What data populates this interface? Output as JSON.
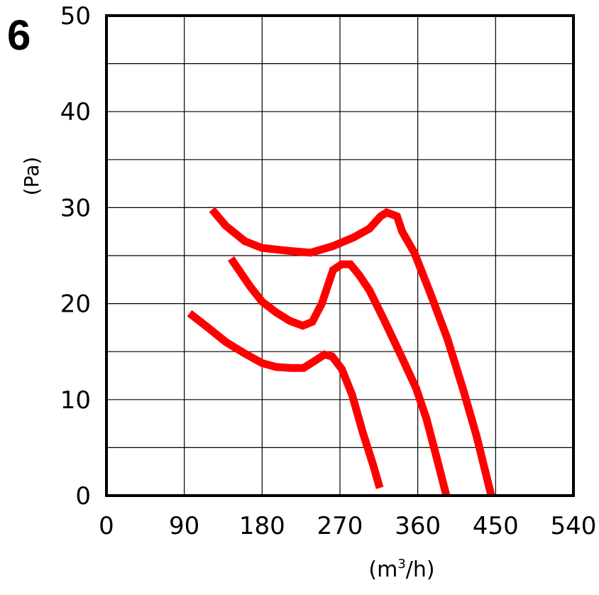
{
  "chart_data": {
    "type": "line",
    "title": "6",
    "xlabel": "(m³/h)",
    "ylabel": "(Pa)",
    "xlim": [
      0,
      540
    ],
    "ylim": [
      0,
      50
    ],
    "x_ticks": [
      "0",
      "90",
      "180",
      "270",
      "360",
      "450",
      "540"
    ],
    "y_ticks": [
      "0",
      "10",
      "20",
      "30",
      "40",
      "50"
    ],
    "grid": true,
    "line_color": "#ff0000",
    "series": [
      {
        "points": [
          [
            122,
            29.8
          ],
          [
            138,
            28.1
          ],
          [
            160,
            26.5
          ],
          [
            180,
            25.8
          ],
          [
            210,
            25.5
          ],
          [
            236,
            25.3
          ],
          [
            262,
            26.0
          ],
          [
            286,
            26.9
          ],
          [
            304,
            27.8
          ],
          [
            317,
            29.1
          ],
          [
            324,
            29.5
          ],
          [
            336,
            29.1
          ],
          [
            342,
            27.5
          ],
          [
            356,
            25.3
          ],
          [
            374,
            21.2
          ],
          [
            394,
            16.4
          ],
          [
            412,
            11.2
          ],
          [
            428,
            6.2
          ],
          [
            445,
            0
          ]
        ]
      },
      {
        "points": [
          [
            144,
            24.7
          ],
          [
            166,
            21.8
          ],
          [
            180,
            20.2
          ],
          [
            196,
            19.1
          ],
          [
            212,
            18.2
          ],
          [
            227,
            17.7
          ],
          [
            238,
            18.1
          ],
          [
            249,
            20.0
          ],
          [
            262,
            23.5
          ],
          [
            272,
            24.1
          ],
          [
            282,
            24.1
          ],
          [
            292,
            23.0
          ],
          [
            304,
            21.4
          ],
          [
            320,
            18.5
          ],
          [
            340,
            14.7
          ],
          [
            358,
            11.2
          ],
          [
            370,
            8.0
          ],
          [
            384,
            3.2
          ],
          [
            393,
            0
          ]
        ]
      },
      {
        "points": [
          [
            96,
            19.0
          ],
          [
            116,
            17.6
          ],
          [
            138,
            16.0
          ],
          [
            160,
            14.8
          ],
          [
            180,
            13.8
          ],
          [
            196,
            13.4
          ],
          [
            213,
            13.3
          ],
          [
            228,
            13.3
          ],
          [
            242,
            14.1
          ],
          [
            252,
            14.7
          ],
          [
            261,
            14.5
          ],
          [
            272,
            13.2
          ],
          [
            284,
            10.5
          ],
          [
            297,
            6.4
          ],
          [
            308,
            3.3
          ],
          [
            316,
            0.8
          ]
        ]
      }
    ]
  }
}
